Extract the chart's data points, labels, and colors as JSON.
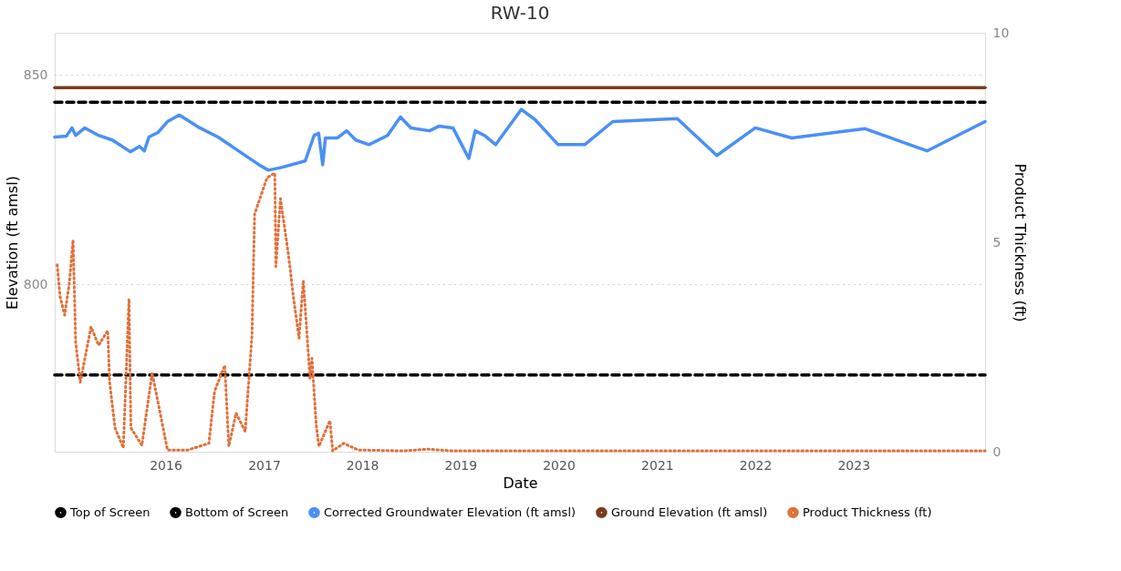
{
  "chart_data": {
    "type": "line",
    "title": "RW-10",
    "xlabel": "Date",
    "ylabel": "Elevation (ft amsl)",
    "y2label": "Product Thickness (ft)",
    "xlim": [
      "2014-11-15",
      "2024-05-04"
    ],
    "xticks": [
      {
        "value": "2016-01-01",
        "label": "2016"
      },
      {
        "value": "2017-01-01",
        "label": "2017"
      },
      {
        "value": "2018-01-01",
        "label": "2018"
      },
      {
        "value": "2019-01-01",
        "label": "2019"
      },
      {
        "value": "2020-01-01",
        "label": "2020"
      },
      {
        "value": "2021-01-01",
        "label": "2021"
      },
      {
        "value": "2022-01-01",
        "label": "2022"
      },
      {
        "value": "2023-01-01",
        "label": "2023"
      }
    ],
    "ylim": [
      760,
      860
    ],
    "yticks": [
      800,
      850
    ],
    "y2lim": [
      0,
      10
    ],
    "y2ticks": [
      0,
      5,
      10
    ],
    "grid": "y",
    "legend": "bottom",
    "marker": "none",
    "series": [
      {
        "name": "Top of Screen",
        "color": "#000000",
        "line_style": "dashed",
        "x": [
          "2014-11-15",
          "2024-05-04"
        ],
        "values": [
          843.4,
          843.4
        ]
      },
      {
        "name": "Bottom of Screen",
        "color": "#000000",
        "line_style": "dashed",
        "x": [
          "2014-11-15",
          "2024-05-04"
        ],
        "values": [
          778.3,
          778.3
        ]
      },
      {
        "name": "Corrected Groundwater Elevation (ft amsl)",
        "color": "#4a90f5",
        "line_style": "solid",
        "x": [
          "2014-11-15",
          "2014-12-28",
          "2015-01-18",
          "2015-02-01",
          "2015-03-07",
          "2015-04-27",
          "2015-06-17",
          "2015-08-23",
          "2015-09-26",
          "2015-10-14",
          "2015-10-31",
          "2015-12-04",
          "2016-01-08",
          "2016-02-21",
          "2016-05-07",
          "2016-07-14",
          "2016-09-19",
          "2016-12-13",
          "2017-01-17",
          "2017-03-10",
          "2017-06-03",
          "2017-07-06",
          "2017-07-23",
          "2017-08-07",
          "2017-08-17",
          "2017-10-01",
          "2017-11-04",
          "2017-12-08",
          "2018-01-26",
          "2018-04-05",
          "2018-05-23",
          "2018-07-01",
          "2018-09-08",
          "2018-10-13",
          "2018-12-04",
          "2019-02-01",
          "2019-02-25",
          "2019-03-31",
          "2019-05-12",
          "2019-08-15",
          "2019-10-05",
          "2019-12-30",
          "2020-04-07",
          "2020-07-20",
          "2021-03-17",
          "2021-08-11",
          "2022-01-01",
          "2022-05-16",
          "2023-02-13",
          "2023-10-01",
          "2024-05-04"
        ],
        "values": [
          835.1,
          835.3,
          837.3,
          835.5,
          837.3,
          835.5,
          834.4,
          831.6,
          832.9,
          831.8,
          835.1,
          836.2,
          838.8,
          840.4,
          837.3,
          835.1,
          832.2,
          828.5,
          827.2,
          827.9,
          829.4,
          835.5,
          836.0,
          828.5,
          834.9,
          834.9,
          836.6,
          834.4,
          833.3,
          835.5,
          839.9,
          837.3,
          836.6,
          837.7,
          837.3,
          830.0,
          836.6,
          835.5,
          833.3,
          841.7,
          839.3,
          833.3,
          833.3,
          838.8,
          839.5,
          830.7,
          837.3,
          834.9,
          837.1,
          831.8,
          838.8
        ]
      },
      {
        "name": "Ground Elevation (ft amsl)",
        "color": "#7a3b1e",
        "line_style": "solid",
        "x": [
          "2014-11-15",
          "2024-05-04"
        ],
        "values": [
          846.9,
          846.9
        ]
      },
      {
        "name": "Product Thickness (ft)",
        "color": "#e0703a",
        "line_style": "dotted",
        "axis": "y2",
        "x": [
          "2014-11-24",
          "2014-12-05",
          "2014-12-22",
          "2015-01-08",
          "2015-01-22",
          "2015-02-01",
          "2015-02-18",
          "2015-03-30",
          "2015-04-27",
          "2015-05-31",
          "2015-06-07",
          "2015-06-27",
          "2015-07-28",
          "2015-08-18",
          "2015-08-25",
          "2015-10-05",
          "2015-11-12",
          "2015-12-12",
          "2016-01-08",
          "2016-03-24",
          "2016-06-10",
          "2016-07-01",
          "2016-08-08",
          "2016-08-23",
          "2016-09-19",
          "2016-10-23",
          "2016-11-17",
          "2016-11-27",
          "2017-01-12",
          "2017-02-10",
          "2017-02-14",
          "2017-03-03",
          "2017-04-03",
          "2017-04-20",
          "2017-05-11",
          "2017-05-27",
          "2017-06-21",
          "2017-06-28",
          "2017-07-14",
          "2017-07-24",
          "2017-09-03",
          "2017-09-13",
          "2017-10-24",
          "2017-12-17",
          "2018-06-01",
          "2018-09-01",
          "2018-12-01",
          "2020-01-01",
          "2022-01-01",
          "2024-05-04"
        ],
        "values": [
          4.46,
          3.7,
          3.26,
          4.0,
          5.05,
          2.6,
          1.66,
          2.98,
          2.54,
          2.89,
          1.66,
          0.57,
          0.09,
          3.65,
          0.57,
          0.15,
          1.88,
          0.92,
          0.04,
          0.04,
          0.2,
          1.44,
          2.06,
          0.13,
          0.92,
          0.48,
          2.76,
          5.67,
          6.54,
          6.65,
          4.42,
          6.04,
          4.64,
          3.7,
          2.71,
          4.09,
          1.73,
          2.23,
          0.63,
          0.13,
          0.74,
          0.02,
          0.2,
          0.04,
          0.02,
          0.06,
          0.02,
          0.02,
          0.02,
          0.02
        ]
      }
    ]
  }
}
